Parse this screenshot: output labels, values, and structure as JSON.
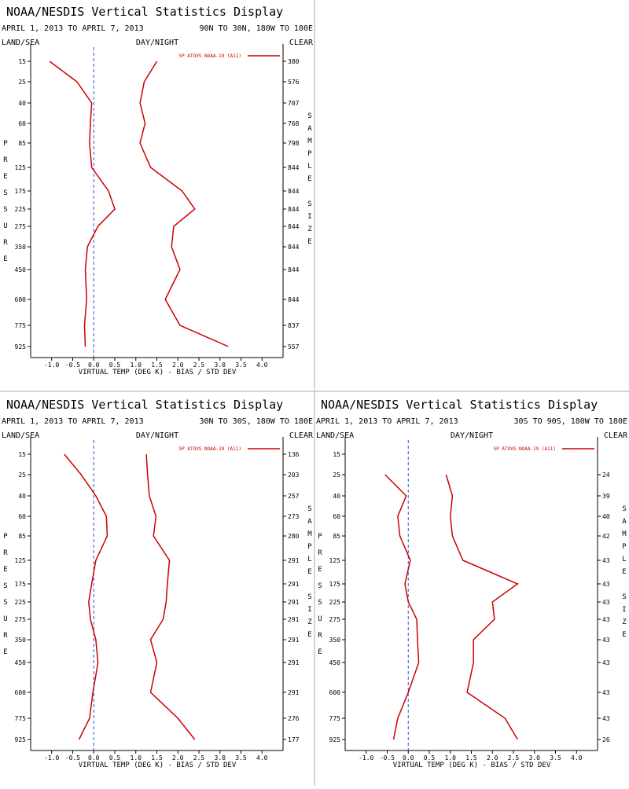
{
  "colors": {
    "series": "#cc0000",
    "axis": "#000000",
    "zero_line": "#3355cc",
    "divider": "#aaaaaa"
  },
  "panels": [
    {
      "title": "NOAA/NESDIS Vertical Statistics Display",
      "date_range": "APRIL 1, 2013 TO APRIL 7, 2013",
      "region": "90N TO 30N, 180W TO 180E",
      "land_sea": "LAND/SEA",
      "day_night": "DAY/NIGHT",
      "clear": "CLEAR",
      "ylabel_left": "PRESSURE",
      "ylabel_right": "SAMPLE SIZE",
      "xlabel": "VIRTUAL TEMP (DEG K) - BIAS / STD DEV",
      "legend": "SP ATOVS NOAA-19 (A11)",
      "x_ticks": [
        "-1.0",
        "-0.5",
        "0.0",
        "0.5",
        "1.0",
        "1.5",
        "2.0",
        "2.5",
        "3.0",
        "3.5",
        "4.0"
      ],
      "pressure": [
        "15",
        "25",
        "40",
        "60",
        "85",
        "125",
        "175",
        "225",
        "275",
        "350",
        "450",
        "600",
        "775",
        "925"
      ],
      "sample_size": [
        "380",
        "576",
        "707",
        "768",
        "798",
        "844",
        "844",
        "844",
        "844",
        "844",
        "844",
        "844",
        "837",
        "557"
      ],
      "chart_data": {
        "type": "line",
        "xlim": [
          -1.5,
          4.5
        ],
        "bias": [
          -1.05,
          -0.4,
          -0.05,
          -0.08,
          -0.1,
          -0.05,
          0.35,
          0.5,
          0.1,
          -0.15,
          -0.2,
          -0.17,
          -0.22,
          -0.2
        ],
        "std_dev": [
          1.5,
          1.2,
          1.1,
          1.22,
          1.1,
          1.35,
          2.1,
          2.4,
          1.9,
          1.85,
          2.05,
          1.7,
          2.05,
          3.2
        ]
      }
    },
    {
      "title": "NOAA/NESDIS Vertical Statistics Display",
      "date_range": "APRIL 1, 2013 TO APRIL 7, 2013",
      "region": "30N TO 30S, 180W TO 180E",
      "land_sea": "LAND/SEA",
      "day_night": "DAY/NIGHT",
      "clear": "CLEAR",
      "ylabel_left": "PRESSURE",
      "ylabel_right": "SAMPLE SIZE",
      "xlabel": "VIRTUAL TEMP (DEG K) - BIAS / STD DEV",
      "legend": "SP ATOVS NOAA-19 (A11)",
      "x_ticks": [
        "-1.0",
        "-0.5",
        "0.0",
        "0.5",
        "1.0",
        "1.5",
        "2.0",
        "2.5",
        "3.0",
        "3.5",
        "4.0"
      ],
      "pressure": [
        "15",
        "25",
        "40",
        "60",
        "85",
        "125",
        "175",
        "225",
        "275",
        "350",
        "450",
        "600",
        "775",
        "925"
      ],
      "sample_size": [
        "136",
        "203",
        "257",
        "273",
        "280",
        "291",
        "291",
        "291",
        "291",
        "291",
        "291",
        "291",
        "276",
        "177"
      ],
      "chart_data": {
        "type": "line",
        "xlim": [
          -1.5,
          4.5
        ],
        "bias": [
          -0.7,
          -0.3,
          0.05,
          0.3,
          0.32,
          0.05,
          -0.05,
          -0.12,
          -0.08,
          0.05,
          0.1,
          -0.02,
          -0.1,
          -0.35
        ],
        "std_dev": [
          1.25,
          1.28,
          1.32,
          1.48,
          1.42,
          1.8,
          1.75,
          1.72,
          1.65,
          1.35,
          1.5,
          1.35,
          2.0,
          2.4
        ]
      }
    },
    {
      "title": "NOAA/NESDIS Vertical Statistics Display",
      "date_range": "APRIL 1, 2013 TO APRIL 7, 2013",
      "region": "30S TO 90S, 180W TO 180E",
      "land_sea": "LAND/SEA",
      "day_night": "DAY/NIGHT",
      "clear": "CLEAR",
      "ylabel_left": "PRESSURE",
      "ylabel_right": "SAMPLE SIZE",
      "xlabel": "VIRTUAL TEMP (DEG K) - BIAS / STD DEV",
      "legend": "SP ATOVS NOAA-19 (A11)",
      "x_ticks": [
        "-1.0",
        "-0.5",
        "0.0",
        "0.5",
        "1.0",
        "1.5",
        "2.0",
        "2.5",
        "3.0",
        "3.5",
        "4.0"
      ],
      "pressure": [
        "15",
        "25",
        "40",
        "60",
        "85",
        "125",
        "175",
        "225",
        "275",
        "350",
        "450",
        "600",
        "775",
        "925"
      ],
      "sample_size": [
        "",
        "24",
        "39",
        "40",
        "42",
        "43",
        "43",
        "43",
        "43",
        "43",
        "43",
        "43",
        "43",
        "26"
      ],
      "chart_data": {
        "type": "line",
        "xlim": [
          -1.5,
          4.5
        ],
        "bias": [
          null,
          -0.55,
          -0.05,
          -0.25,
          -0.2,
          0.05,
          -0.08,
          0.0,
          0.2,
          0.22,
          0.25,
          0.0,
          -0.25,
          -0.35
        ],
        "std_dev": [
          null,
          0.9,
          1.05,
          1.0,
          1.05,
          1.3,
          2.6,
          2.0,
          2.05,
          1.55,
          1.55,
          1.4,
          2.3,
          2.6
        ]
      }
    }
  ]
}
